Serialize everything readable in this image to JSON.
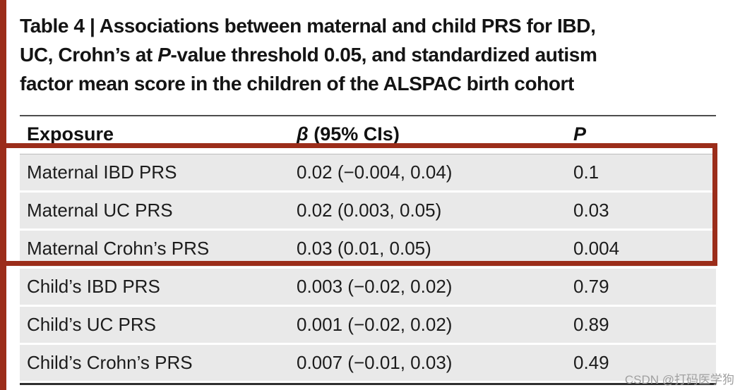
{
  "colors": {
    "highlight": "#9b2d1a",
    "row_background": "#e9e9e9",
    "title_text": "#141414",
    "watermark_text": "#a0a0a0"
  },
  "watermark": {
    "text": "CSDN @打码医学狗"
  },
  "table": {
    "title": {
      "line1": "Table 4 | Associations between maternal and child PRS for IBD,",
      "line2_pre": "UC, Crohn’s at ",
      "line2_italic": "P",
      "line2_post": "-value threshold 0.05, and standardized autism",
      "line3": "factor mean score in the children of the ALSPAC birth cohort"
    },
    "headers": {
      "exposure": "Exposure",
      "beta_symbol": "β",
      "beta_rest": " (95% CIs)",
      "p": "P"
    },
    "rows": [
      {
        "exposure": "Maternal IBD PRS",
        "beta": "0.02 (−0.004, 0.04)",
        "p": "0.1",
        "highlighted": true
      },
      {
        "exposure": "Maternal UC PRS",
        "beta": "0.02 (0.003, 0.05)",
        "p": "0.03",
        "highlighted": true
      },
      {
        "exposure": "Maternal Crohn’s PRS",
        "beta": "0.03 (0.01, 0.05)",
        "p": "0.004",
        "highlighted": true
      },
      {
        "exposure": "Child’s IBD PRS",
        "beta": "0.003 (−0.02, 0.02)",
        "p": "0.79",
        "highlighted": false
      },
      {
        "exposure": "Child’s UC PRS",
        "beta": "0.001 (−0.02, 0.02)",
        "p": "0.89",
        "highlighted": false
      },
      {
        "exposure": "Child’s Crohn’s PRS",
        "beta": "0.007 (−0.01, 0.03)",
        "p": "0.49",
        "highlighted": false
      }
    ]
  }
}
